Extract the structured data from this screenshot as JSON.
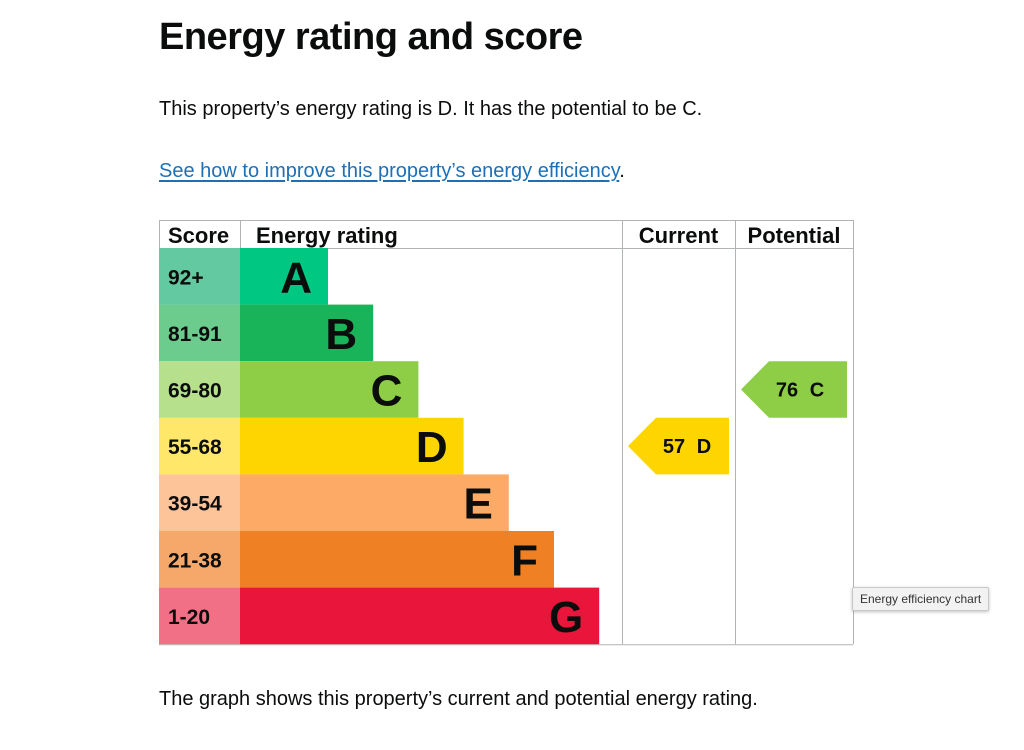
{
  "heading": "Energy rating and score",
  "summary": "This property’s energy rating is D. It has the potential to be C.",
  "improve_link": {
    "text": "See how to improve this property’s energy efficiency",
    "suffix": "."
  },
  "caption": "The graph shows this property’s current and potential energy rating.",
  "tooltip": "Energy efficiency chart",
  "chart_data": {
    "type": "bar",
    "headers": {
      "score": "Score",
      "rating": "Energy rating",
      "current": "Current",
      "potential": "Potential"
    },
    "bands": [
      {
        "letter": "A",
        "score": "92+",
        "color": "#00c781",
        "score_bg": "#62c9a0"
      },
      {
        "letter": "B",
        "score": "81-91",
        "color": "#19b459",
        "score_bg": "#6ccc8e"
      },
      {
        "letter": "C",
        "score": "69-80",
        "color": "#8dce46",
        "score_bg": "#b7e08c"
      },
      {
        "letter": "D",
        "score": "55-68",
        "color": "#ffd500",
        "score_bg": "#ffe76a"
      },
      {
        "letter": "E",
        "score": "39-54",
        "color": "#fcaa65",
        "score_bg": "#fdc49a"
      },
      {
        "letter": "F",
        "score": "21-38",
        "color": "#ef8023",
        "score_bg": "#f5a86a"
      },
      {
        "letter": "G",
        "score": "1-20",
        "color": "#e9153b",
        "score_bg": "#f27086"
      }
    ],
    "current": {
      "value": 57,
      "rating": "D",
      "color": "#ffd500"
    },
    "potential": {
      "value": 76,
      "rating": "C",
      "color": "#8dce46"
    }
  }
}
